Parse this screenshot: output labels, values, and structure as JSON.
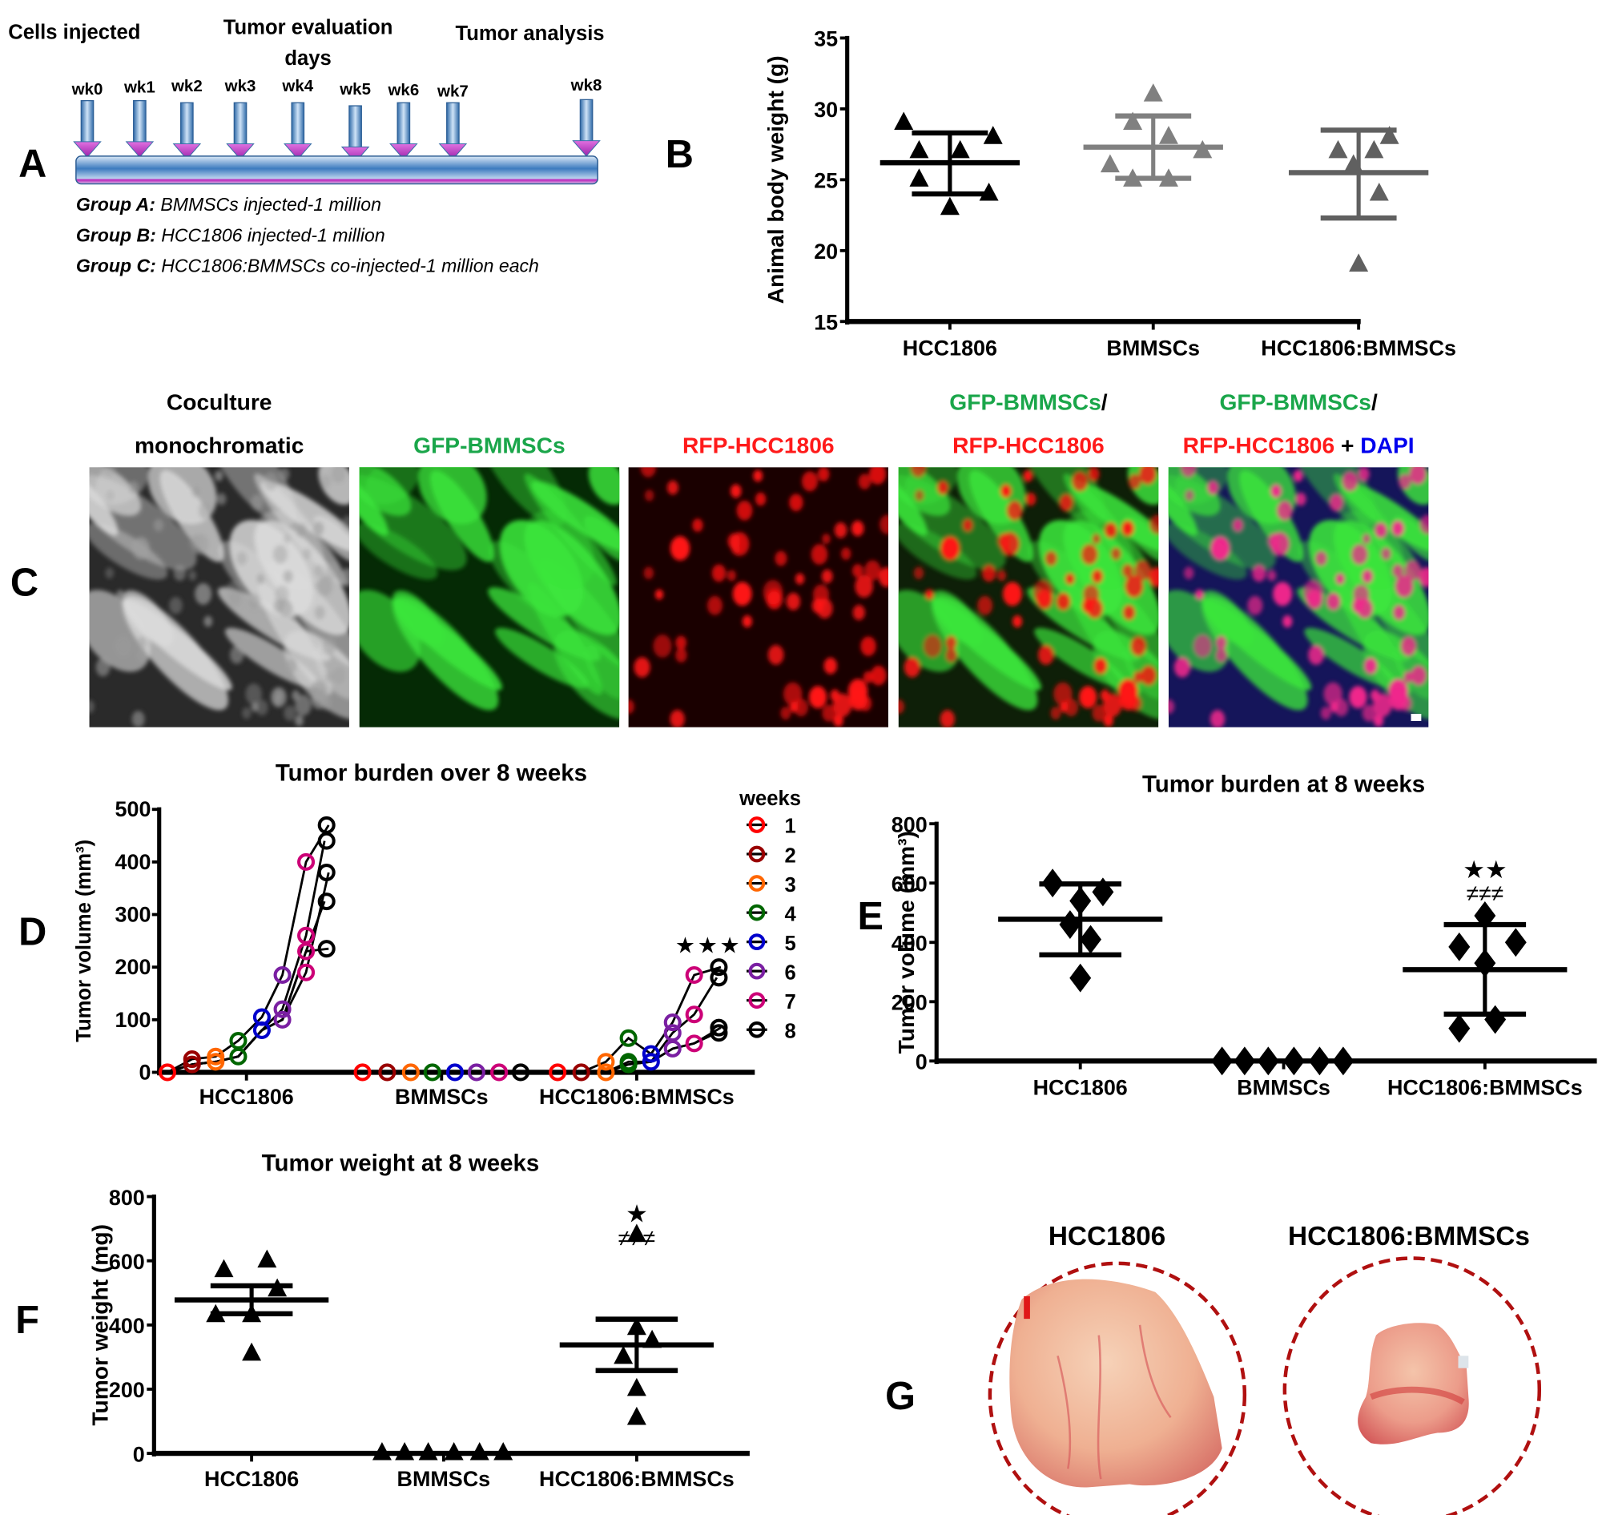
{
  "panels": {
    "A": {
      "letter": "A",
      "headers": [
        "Cells injected",
        "Tumor evaluation",
        "days",
        "Tumor analysis"
      ],
      "weeks": [
        "wk0",
        "wk1",
        "wk2",
        "wk3",
        "wk4",
        "wk5",
        "wk6",
        "wk7",
        "wk8"
      ],
      "groups": [
        {
          "label": "Group A:",
          "text": "BMMSCs injected-1 million"
        },
        {
          "label": "Group B:",
          "text": "HCC1806 injected-1 million"
        },
        {
          "label": "Group C:",
          "text": "HCC1806:BMMSCs co-injected-1 million each"
        }
      ],
      "colors": {
        "arrow": "#3a78b8",
        "arrow_tip": "#cc33cc",
        "bar": "#5b9bd5",
        "bar_stripe": "#aa22aa"
      }
    },
    "B": {
      "letter": "B"
    },
    "C": {
      "letter": "C",
      "images": [
        {
          "title_lines": [
            [
              {
                "t": "Coculture",
                "c": "#000000"
              }
            ],
            [
              {
                "t": "monochromatic",
                "c": "#000000"
              }
            ]
          ],
          "kind": "gray"
        },
        {
          "title_lines": [
            [
              {
                "t": "GFP-BMMSCs",
                "c": "#1aa64a"
              }
            ]
          ],
          "kind": "green"
        },
        {
          "title_lines": [
            [
              {
                "t": "RFP-HCC1806",
                "c": "#ff1a1a"
              }
            ]
          ],
          "kind": "red"
        },
        {
          "title_lines": [
            [
              {
                "t": "GFP-BMMSCs",
                "c": "#1aa64a"
              },
              {
                "t": "/",
                "c": "#000000"
              }
            ],
            [
              {
                "t": "RFP-HCC1806",
                "c": "#ff1a1a"
              }
            ]
          ],
          "kind": "merge"
        },
        {
          "title_lines": [
            [
              {
                "t": "GFP-BMMSCs",
                "c": "#1aa64a"
              },
              {
                "t": "/",
                "c": "#000000"
              }
            ],
            [
              {
                "t": "RFP-HCC1806",
                "c": "#ff1a1a"
              },
              {
                "t": " + ",
                "c": "#000000"
              },
              {
                "t": "DAPI",
                "c": "#0000ee"
              }
            ]
          ],
          "kind": "dapi"
        }
      ]
    },
    "D": {
      "letter": "D"
    },
    "E": {
      "letter": "E"
    },
    "F": {
      "letter": "F"
    },
    "G": {
      "letter": "G",
      "labels": [
        "HCC1806",
        "HCC1806:BMMSCs"
      ],
      "circle_color": "#b01010"
    }
  },
  "chart_data": [
    {
      "id": "B",
      "type": "scatter",
      "title": "",
      "xlabel": "",
      "ylabel": "Animal body weight (g)",
      "ylim": [
        15,
        35
      ],
      "yticks": [
        15,
        20,
        25,
        30,
        35
      ],
      "categories": [
        "HCC1806",
        "BMMSCs",
        "HCC1806:BMMSCs"
      ],
      "marker": "triangle",
      "series": [
        {
          "name": "HCC1806",
          "color": "#000000",
          "values": [
            29.0,
            27.0,
            27.0,
            28.0,
            25.0,
            24.0,
            23.0
          ],
          "mean": 26.2,
          "sd_low": 24.0,
          "sd_high": 28.3
        },
        {
          "name": "BMMSCs",
          "color": "#808080",
          "values": [
            31.0,
            29.0,
            28.0,
            27.0,
            26.0,
            25.0,
            25.0
          ],
          "mean": 27.3,
          "sd_low": 25.1,
          "sd_high": 29.5
        },
        {
          "name": "HCC1806:BMMSCs",
          "color": "#606060",
          "values": [
            28.0,
            27.0,
            27.0,
            26.0,
            24.0,
            19.0
          ],
          "mean": 25.5,
          "sd_low": 22.3,
          "sd_high": 28.5
        }
      ]
    },
    {
      "id": "D",
      "type": "line",
      "title": "Tumor burden over 8 weeks",
      "xlabel": "",
      "ylabel": "Tumor volume (mm³)",
      "ylim": [
        0,
        500
      ],
      "yticks": [
        0,
        100,
        200,
        300,
        400,
        500
      ],
      "categories": [
        "HCC1806",
        "BMMSCs",
        "HCC1806:BMMSCs"
      ],
      "legend": {
        "title": "weeks",
        "position": "right",
        "entries": [
          "1",
          "2",
          "3",
          "4",
          "5",
          "6",
          "7",
          "8"
        ]
      },
      "week_colors": [
        "#ff0000",
        "#990000",
        "#ff6600",
        "#006600",
        "#0000cc",
        "#7a1fa2",
        "#cc0077",
        "#000000"
      ],
      "annotation": {
        "text": "★★★",
        "group": "HCC1806:BMMSCs"
      },
      "groups": [
        {
          "name": "HCC1806",
          "week_means": [
            0,
            15,
            20,
            40,
            90,
            150,
            260,
            380
          ],
          "points": [
            [
              0
            ],
            [
              25,
              15
            ],
            [
              30,
              20
            ],
            [
              60,
              30
            ],
            [
              105,
              80
            ],
            [
              185,
              120,
              100
            ],
            [
              400,
              260,
              190,
              230
            ],
            [
              470,
              440,
              380,
              325,
              235
            ]
          ]
        },
        {
          "name": "BMMSCs",
          "week_means": [
            0,
            0,
            0,
            0,
            0,
            0,
            0,
            0
          ],
          "points": [
            [
              0
            ],
            [
              0
            ],
            [
              0
            ],
            [
              0
            ],
            [
              0
            ],
            [
              0
            ],
            [
              0
            ],
            [
              0
            ]
          ]
        },
        {
          "name": "HCC1806:BMMSCs",
          "week_means": [
            0,
            0,
            10,
            25,
            30,
            70,
            120,
            150
          ],
          "points": [
            [
              0
            ],
            [
              0
            ],
            [
              20,
              0
            ],
            [
              65,
              20,
              15
            ],
            [
              35,
              20
            ],
            [
              95,
              75,
              45
            ],
            [
              185,
              110,
              55
            ],
            [
              200,
              180,
              85,
              75
            ]
          ]
        }
      ]
    },
    {
      "id": "E",
      "type": "scatter",
      "title": "Tumor burden at 8 weeks",
      "xlabel": "",
      "ylabel": "Tumor volume (mm³)",
      "ylim": [
        0,
        800
      ],
      "yticks": [
        0,
        200,
        400,
        600,
        800
      ],
      "categories": [
        "HCC1806",
        "BMMSCs",
        "HCC1806:BMMSCs"
      ],
      "marker": "diamond",
      "annotation": {
        "text": [
          "★★",
          "≠≠≠"
        ],
        "group": "HCC1806:BMMSCs"
      },
      "series": [
        {
          "name": "HCC1806",
          "color": "#000000",
          "values": [
            600,
            570,
            540,
            460,
            410,
            280
          ],
          "mean": 478,
          "sd_low": 358,
          "sd_high": 597
        },
        {
          "name": "BMMSCs",
          "color": "#000000",
          "values": [
            0,
            0,
            0,
            0,
            0,
            0
          ],
          "mean": 0,
          "sd_low": 0,
          "sd_high": 0
        },
        {
          "name": "HCC1806:BMMSCs",
          "color": "#000000",
          "values": [
            490,
            400,
            385,
            330,
            140,
            110
          ],
          "mean": 308,
          "sd_low": 158,
          "sd_high": 460
        }
      ]
    },
    {
      "id": "F",
      "type": "scatter",
      "title": "Tumor weight at 8 weeks",
      "xlabel": "",
      "ylabel": "Tumor weight (mg)",
      "ylim": [
        0,
        800
      ],
      "yticks": [
        0,
        200,
        400,
        600,
        800
      ],
      "categories": [
        "HCC1806",
        "BMMSCs",
        "HCC1806:BMMSCs"
      ],
      "marker": "triangle",
      "annotation": {
        "text": [
          "★",
          "≠≠≠"
        ],
        "group": "HCC1806:BMMSCs"
      },
      "series": [
        {
          "name": "HCC1806",
          "color": "#000000",
          "values": [
            600,
            570,
            510,
            430,
            430,
            310
          ],
          "mean": 478,
          "sd_low": 435,
          "sd_high": 522
        },
        {
          "name": "BMMSCs",
          "color": "#000000",
          "values": [
            0,
            0,
            0,
            0,
            0,
            0
          ],
          "mean": 0,
          "sd_low": 0,
          "sd_high": 0
        },
        {
          "name": "HCC1806:BMMSCs",
          "color": "#000000",
          "values": [
            680,
            390,
            350,
            300,
            200,
            110
          ],
          "mean": 338,
          "sd_low": 258,
          "sd_high": 418
        }
      ]
    }
  ]
}
